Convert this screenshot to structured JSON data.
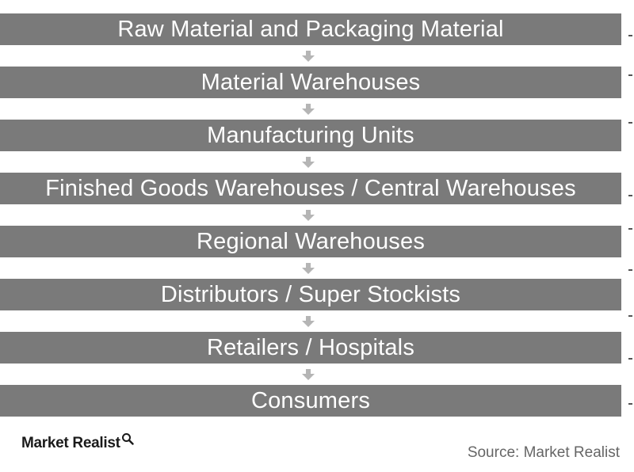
{
  "steps": [
    "Raw Material and Packaging Material",
    "Material Warehouses",
    "Manufacturing Units",
    "Finished Goods Warehouses / Central Warehouses",
    "Regional Warehouses",
    "Distributors / Super Stockists",
    "Retailers / Hospitals",
    "Consumers"
  ],
  "logo": {
    "text": "Market Realist",
    "icon": "magnifier-icon"
  },
  "source": "Source: Market Realist",
  "colors": {
    "box_fill": "#7a7a7a",
    "box_text": "#ffffff",
    "arrow": "#b5b5b5",
    "source_text": "#666666"
  }
}
